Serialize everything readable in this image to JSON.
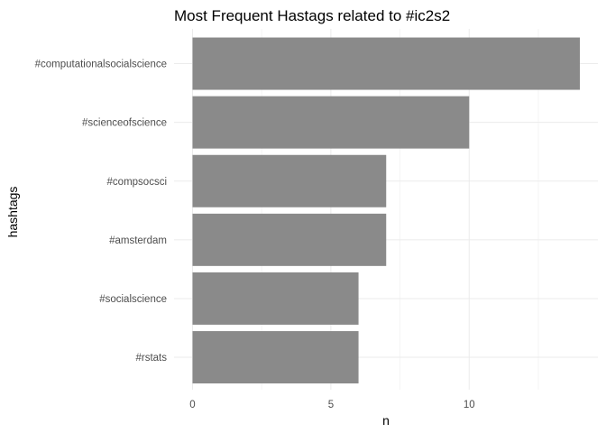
{
  "chart_data": {
    "type": "bar",
    "orientation": "horizontal",
    "title": "Most Frequent Hastags related to #ic2s2",
    "xlabel": "n",
    "ylabel": "hashtags",
    "categories": [
      "#computationalsocialscience",
      "#scienceofscience",
      "#compsocsci",
      "#amsterdam",
      "#socialscience",
      "#rstats"
    ],
    "values": [
      14,
      10,
      7,
      7,
      6,
      6
    ],
    "xlim": [
      0,
      14
    ],
    "x_ticks": [
      "0",
      "5",
      "10"
    ],
    "grid": true,
    "legend": "none",
    "colors": {
      "bar": "#8a8a8a",
      "grid_major": "#ebebeb",
      "grid_minor": "#f3f3f3",
      "background": "#ffffff"
    }
  }
}
